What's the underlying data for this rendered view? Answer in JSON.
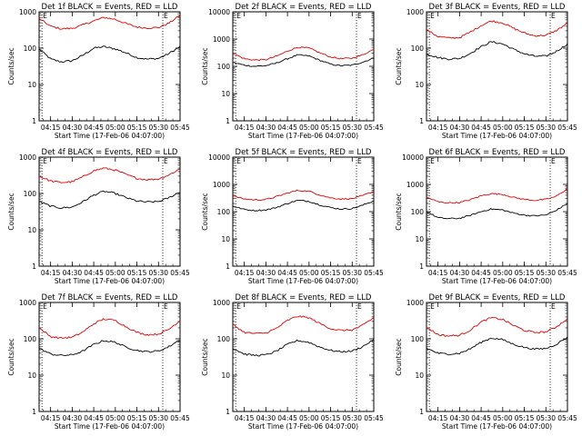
{
  "figure": {
    "background": "#ffffff",
    "series_colors": {
      "Events": "#000000",
      "LLD": "#dd0000"
    }
  },
  "chart_data": [
    {
      "type": "line",
      "title": "Det 1f BLACK = Events, RED = LLD",
      "xlabel": "Start Time (17-Feb-06 04:07:00)",
      "ylabel": "Counts/sec",
      "yscale": "log",
      "ylim": [
        1,
        1000
      ],
      "y_tick_labels": [
        "1",
        "10",
        "100",
        "1000"
      ],
      "x_tick_labels": [
        "04:15",
        "04:30",
        "04:45",
        "05:00",
        "05:15",
        "05:30",
        "05:45"
      ],
      "x": [
        "04:07",
        "04:15",
        "04:22",
        "04:30",
        "04:37",
        "04:45",
        "04:52",
        "05:00",
        "05:07",
        "05:15",
        "05:22",
        "05:30",
        "05:37",
        "05:45"
      ],
      "series": [
        {
          "name": "Events",
          "values": [
            95,
            50,
            42,
            45,
            62,
            100,
            110,
            95,
            75,
            55,
            50,
            52,
            70,
            110
          ]
        },
        {
          "name": "LLD",
          "values": [
            650,
            400,
            340,
            350,
            430,
            560,
            700,
            620,
            480,
            380,
            360,
            370,
            480,
            800
          ]
        }
      ],
      "markers": [
        {
          "label": "E",
          "x": "04:09"
        },
        {
          "label": "E",
          "x": "05:33"
        }
      ]
    },
    {
      "type": "line",
      "title": "Det 2f BLACK = Events, RED = LLD",
      "xlabel": "Start Time (17-Feb-06 04:07:00)",
      "ylabel": "Counts/sec",
      "yscale": "log",
      "ylim": [
        1,
        10000
      ],
      "y_tick_labels": [
        "1",
        "10",
        "100",
        "1000",
        "10000"
      ],
      "x_tick_labels": [
        "04:15",
        "04:30",
        "04:45",
        "05:00",
        "05:15",
        "05:30",
        "05:45"
      ],
      "x": [
        "04:07",
        "04:15",
        "04:22",
        "04:30",
        "04:37",
        "04:45",
        "04:52",
        "05:00",
        "05:07",
        "05:15",
        "05:22",
        "05:30",
        "05:37",
        "05:45"
      ],
      "series": [
        {
          "name": "Events",
          "values": [
            140,
            110,
            100,
            105,
            130,
            190,
            260,
            240,
            170,
            120,
            105,
            110,
            140,
            200
          ]
        },
        {
          "name": "LLD",
          "values": [
            300,
            190,
            170,
            175,
            230,
            360,
            500,
            470,
            320,
            220,
            190,
            200,
            260,
            420
          ]
        }
      ],
      "markers": [
        {
          "label": "E",
          "x": "04:09"
        },
        {
          "label": "E",
          "x": "05:33"
        }
      ]
    },
    {
      "type": "line",
      "title": "Det 3f BLACK = Events, RED = LLD",
      "xlabel": "Start Time (17-Feb-06 04:07:00)",
      "ylabel": "Counts/sec",
      "yscale": "log",
      "ylim": [
        1,
        1000
      ],
      "y_tick_labels": [
        "1",
        "10",
        "100",
        "1000"
      ],
      "x_tick_labels": [
        "04:15",
        "04:30",
        "04:45",
        "05:00",
        "05:15",
        "05:30",
        "05:45"
      ],
      "x": [
        "04:07",
        "04:15",
        "04:22",
        "04:30",
        "04:37",
        "04:45",
        "04:52",
        "05:00",
        "05:07",
        "05:15",
        "05:22",
        "05:30",
        "05:37",
        "05:45"
      ],
      "series": [
        {
          "name": "Events",
          "values": [
            70,
            55,
            50,
            52,
            70,
            110,
            150,
            130,
            95,
            70,
            60,
            60,
            80,
            130
          ]
        },
        {
          "name": "LLD",
          "values": [
            320,
            210,
            190,
            195,
            270,
            420,
            560,
            500,
            360,
            260,
            220,
            225,
            300,
            480
          ]
        }
      ],
      "markers": [
        {
          "label": "E",
          "x": "04:09"
        },
        {
          "label": "E",
          "x": "05:33"
        }
      ]
    },
    {
      "type": "line",
      "title": "Det 4f BLACK = Events, RED = LLD",
      "xlabel": "Start Time (17-Feb-06 04:07:00)",
      "ylabel": "Counts/sec",
      "yscale": "log",
      "ylim": [
        1,
        1000
      ],
      "y_tick_labels": [
        "1",
        "10",
        "100",
        "1000"
      ],
      "x_tick_labels": [
        "04:15",
        "04:30",
        "04:45",
        "05:00",
        "05:15",
        "05:30",
        "05:45"
      ],
      "x": [
        "04:07",
        "04:15",
        "04:22",
        "04:30",
        "04:37",
        "04:45",
        "04:52",
        "05:00",
        "05:07",
        "05:15",
        "05:22",
        "05:30",
        "05:37",
        "05:45"
      ],
      "series": [
        {
          "name": "Events",
          "values": [
            60,
            45,
            40,
            42,
            58,
            90,
            115,
            100,
            78,
            62,
            58,
            60,
            75,
            110
          ]
        },
        {
          "name": "LLD",
          "values": [
            300,
            220,
            200,
            210,
            280,
            420,
            500,
            440,
            340,
            260,
            240,
            250,
            320,
            480
          ]
        }
      ],
      "markers": [
        {
          "label": "E",
          "x": "04:09"
        },
        {
          "label": "E",
          "x": "05:33"
        }
      ]
    },
    {
      "type": "line",
      "title": "Det 5f BLACK = Events, RED = LLD",
      "xlabel": "Start Time (17-Feb-06 04:07:00)",
      "ylabel": "Counts/sec",
      "yscale": "log",
      "ylim": [
        1,
        10000
      ],
      "y_tick_labels": [
        "1",
        "10",
        "100",
        "1000",
        "10000"
      ],
      "x_tick_labels": [
        "04:15",
        "04:30",
        "04:45",
        "05:00",
        "05:15",
        "05:30",
        "05:45"
      ],
      "x": [
        "04:07",
        "04:15",
        "04:22",
        "04:30",
        "04:37",
        "04:45",
        "04:52",
        "05:00",
        "05:07",
        "05:15",
        "05:22",
        "05:30",
        "05:37",
        "05:45"
      ],
      "series": [
        {
          "name": "Events",
          "values": [
            160,
            120,
            110,
            115,
            140,
            200,
            260,
            240,
            180,
            140,
            125,
            130,
            170,
            250
          ]
        },
        {
          "name": "LLD",
          "values": [
            380,
            290,
            270,
            280,
            350,
            480,
            600,
            560,
            420,
            320,
            290,
            300,
            380,
            560
          ]
        }
      ],
      "markers": [
        {
          "label": "E",
          "x": "04:09"
        },
        {
          "label": "E",
          "x": "05:33"
        }
      ]
    },
    {
      "type": "line",
      "title": "Det 6f BLACK = Events, RED = LLD",
      "xlabel": "Start Time (17-Feb-06 04:07:00)",
      "ylabel": "Counts/sec",
      "yscale": "log",
      "ylim": [
        1,
        10000
      ],
      "y_tick_labels": [
        "1",
        "10",
        "100",
        "1000",
        "10000"
      ],
      "x_tick_labels": [
        "04:15",
        "04:30",
        "04:45",
        "05:00",
        "05:15",
        "05:30",
        "05:45"
      ],
      "x": [
        "04:07",
        "04:15",
        "04:22",
        "04:30",
        "04:37",
        "04:45",
        "04:52",
        "05:00",
        "05:07",
        "05:15",
        "05:22",
        "05:30",
        "05:37",
        "05:45"
      ],
      "series": [
        {
          "name": "Events",
          "values": [
            100,
            60,
            55,
            57,
            72,
            100,
            125,
            115,
            90,
            75,
            70,
            75,
            110,
            200
          ]
        },
        {
          "name": "LLD",
          "values": [
            340,
            230,
            210,
            215,
            270,
            380,
            460,
            430,
            340,
            280,
            260,
            280,
            360,
            700
          ]
        }
      ],
      "markers": [
        {
          "label": "E",
          "x": "04:09"
        },
        {
          "label": "E",
          "x": "05:33"
        }
      ]
    },
    {
      "type": "line",
      "title": "Det 7f BLACK = Events, RED = LLD",
      "xlabel": "Start Time (17-Feb-06 04:07:00)",
      "ylabel": "Counts/sec",
      "yscale": "log",
      "ylim": [
        1,
        1000
      ],
      "y_tick_labels": [
        "1",
        "10",
        "100",
        "1000"
      ],
      "x_tick_labels": [
        "04:15",
        "04:30",
        "04:45",
        "05:00",
        "05:15",
        "05:30",
        "05:45"
      ],
      "x": [
        "04:07",
        "04:15",
        "04:22",
        "04:30",
        "04:37",
        "04:45",
        "04:52",
        "05:00",
        "05:07",
        "05:15",
        "05:22",
        "05:30",
        "05:37",
        "05:45"
      ],
      "series": [
        {
          "name": "Events",
          "values": [
            55,
            38,
            35,
            36,
            45,
            70,
            90,
            80,
            60,
            48,
            44,
            46,
            60,
            95
          ]
        },
        {
          "name": "LLD",
          "values": [
            200,
            115,
            105,
            110,
            150,
            260,
            350,
            320,
            220,
            150,
            130,
            135,
            180,
            320
          ]
        }
      ],
      "markers": [
        {
          "label": "E",
          "x": "04:09"
        },
        {
          "label": "E",
          "x": "05:33"
        }
      ]
    },
    {
      "type": "line",
      "title": "Det 8f BLACK = Events, RED = LLD",
      "xlabel": "Start Time (17-Feb-06 04:07:00)",
      "ylabel": "Counts/sec",
      "yscale": "log",
      "ylim": [
        1,
        1000
      ],
      "y_tick_labels": [
        "1",
        "10",
        "100",
        "1000"
      ],
      "x_tick_labels": [
        "04:15",
        "04:30",
        "04:45",
        "05:00",
        "05:15",
        "05:30",
        "05:45"
      ],
      "x": [
        "04:07",
        "04:15",
        "04:22",
        "04:30",
        "04:37",
        "04:45",
        "04:52",
        "05:00",
        "05:07",
        "05:15",
        "05:22",
        "05:30",
        "05:37",
        "05:45"
      ],
      "series": [
        {
          "name": "Events",
          "values": [
            55,
            38,
            35,
            36,
            45,
            70,
            90,
            80,
            60,
            48,
            44,
            46,
            60,
            95
          ]
        },
        {
          "name": "LLD",
          "values": [
            250,
            150,
            140,
            145,
            190,
            320,
            420,
            380,
            270,
            190,
            170,
            175,
            230,
            380
          ]
        }
      ],
      "markers": [
        {
          "label": "E",
          "x": "04:09"
        },
        {
          "label": "E",
          "x": "05:33"
        }
      ]
    },
    {
      "type": "line",
      "title": "Det 9f BLACK = Events, RED = LLD",
      "xlabel": "Start Time (17-Feb-06 04:07:00)",
      "ylabel": "Counts/sec",
      "yscale": "log",
      "ylim": [
        1,
        1000
      ],
      "y_tick_labels": [
        "1",
        "10",
        "100",
        "1000"
      ],
      "x_tick_labels": [
        "04:15",
        "04:30",
        "04:45",
        "05:00",
        "05:15",
        "05:30",
        "05:45"
      ],
      "x": [
        "04:07",
        "04:15",
        "04:22",
        "04:30",
        "04:37",
        "04:45",
        "04:52",
        "05:00",
        "05:07",
        "05:15",
        "05:22",
        "05:30",
        "05:37",
        "05:45"
      ],
      "series": [
        {
          "name": "Events",
          "values": [
            55,
            40,
            38,
            40,
            52,
            80,
            105,
            95,
            72,
            58,
            52,
            54,
            70,
            110
          ]
        },
        {
          "name": "LLD",
          "values": [
            210,
            130,
            120,
            125,
            170,
            290,
            380,
            340,
            240,
            170,
            150,
            155,
            210,
            360
          ]
        }
      ],
      "markers": [
        {
          "label": "E",
          "x": "04:09"
        },
        {
          "label": "E",
          "x": "05:33"
        }
      ]
    }
  ]
}
